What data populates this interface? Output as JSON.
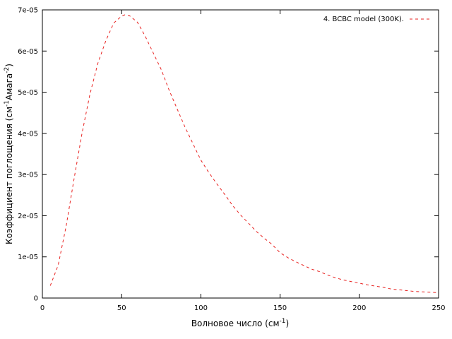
{
  "chart_data": {
    "type": "line",
    "title": "",
    "xlabel": {
      "base": "Волновое число (см",
      "sup": "-1",
      "tail": ")"
    },
    "ylabel": {
      "parts": [
        {
          "t": "Коэффициент поглощения (см",
          "sup": false
        },
        {
          "t": "-1",
          "sup": true
        },
        {
          "t": "Амага",
          "sup": false
        },
        {
          "t": "-2",
          "sup": true
        },
        {
          "t": ")",
          "sup": false
        }
      ]
    },
    "xlim": [
      0,
      250
    ],
    "ylim": [
      0,
      7e-05
    ],
    "xticks": [
      0,
      50,
      100,
      150,
      200,
      250
    ],
    "xtick_labels": [
      "0",
      "50",
      "100",
      "150",
      "200",
      "250"
    ],
    "yticks": [
      0,
      1e-05,
      2e-05,
      3e-05,
      4e-05,
      5e-05,
      6e-05,
      7e-05
    ],
    "ytick_labels": [
      "0",
      "1e-05",
      "2e-05",
      "3e-05",
      "4e-05",
      "5e-05",
      "6e-05",
      "7e-05"
    ],
    "grid": false,
    "legend_position": "top-right",
    "series": [
      {
        "name": "4. BCBC model (300K).",
        "color": "#e8211f",
        "dash": "dashed",
        "x": [
          5,
          10,
          15,
          20,
          25,
          30,
          35,
          40,
          45,
          50,
          52,
          55,
          60,
          65,
          70,
          75,
          80,
          85,
          90,
          95,
          100,
          105,
          110,
          115,
          120,
          125,
          130,
          135,
          140,
          145,
          150,
          155,
          160,
          165,
          170,
          175,
          180,
          185,
          190,
          195,
          200,
          205,
          210,
          215,
          220,
          225,
          230,
          235,
          240,
          245,
          250
        ],
        "y": [
          3e-06,
          8e-06,
          1.75e-05,
          2.9e-05,
          4e-05,
          4.95e-05,
          5.7e-05,
          6.25e-05,
          6.68e-05,
          6.85e-05,
          6.88e-05,
          6.86e-05,
          6.7e-05,
          6.35e-05,
          5.95e-05,
          5.55e-05,
          5.05e-05,
          4.6e-05,
          4.15e-05,
          3.75e-05,
          3.35e-05,
          3.05e-05,
          2.78e-05,
          2.52e-05,
          2.25e-05,
          2.02e-05,
          1.82e-05,
          1.62e-05,
          1.45e-05,
          1.3e-05,
          1.1e-05,
          9.8e-06,
          8.8e-06,
          7.9e-06,
          7e-06,
          6.4e-06,
          5.6e-06,
          4.9e-06,
          4.4e-06,
          4e-06,
          3.6e-06,
          3.2e-06,
          2.9e-06,
          2.6e-06,
          2.2e-06,
          2e-06,
          1.8e-06,
          1.6e-06,
          1.5e-06,
          1.4e-06,
          1.3e-06
        ]
      }
    ]
  }
}
